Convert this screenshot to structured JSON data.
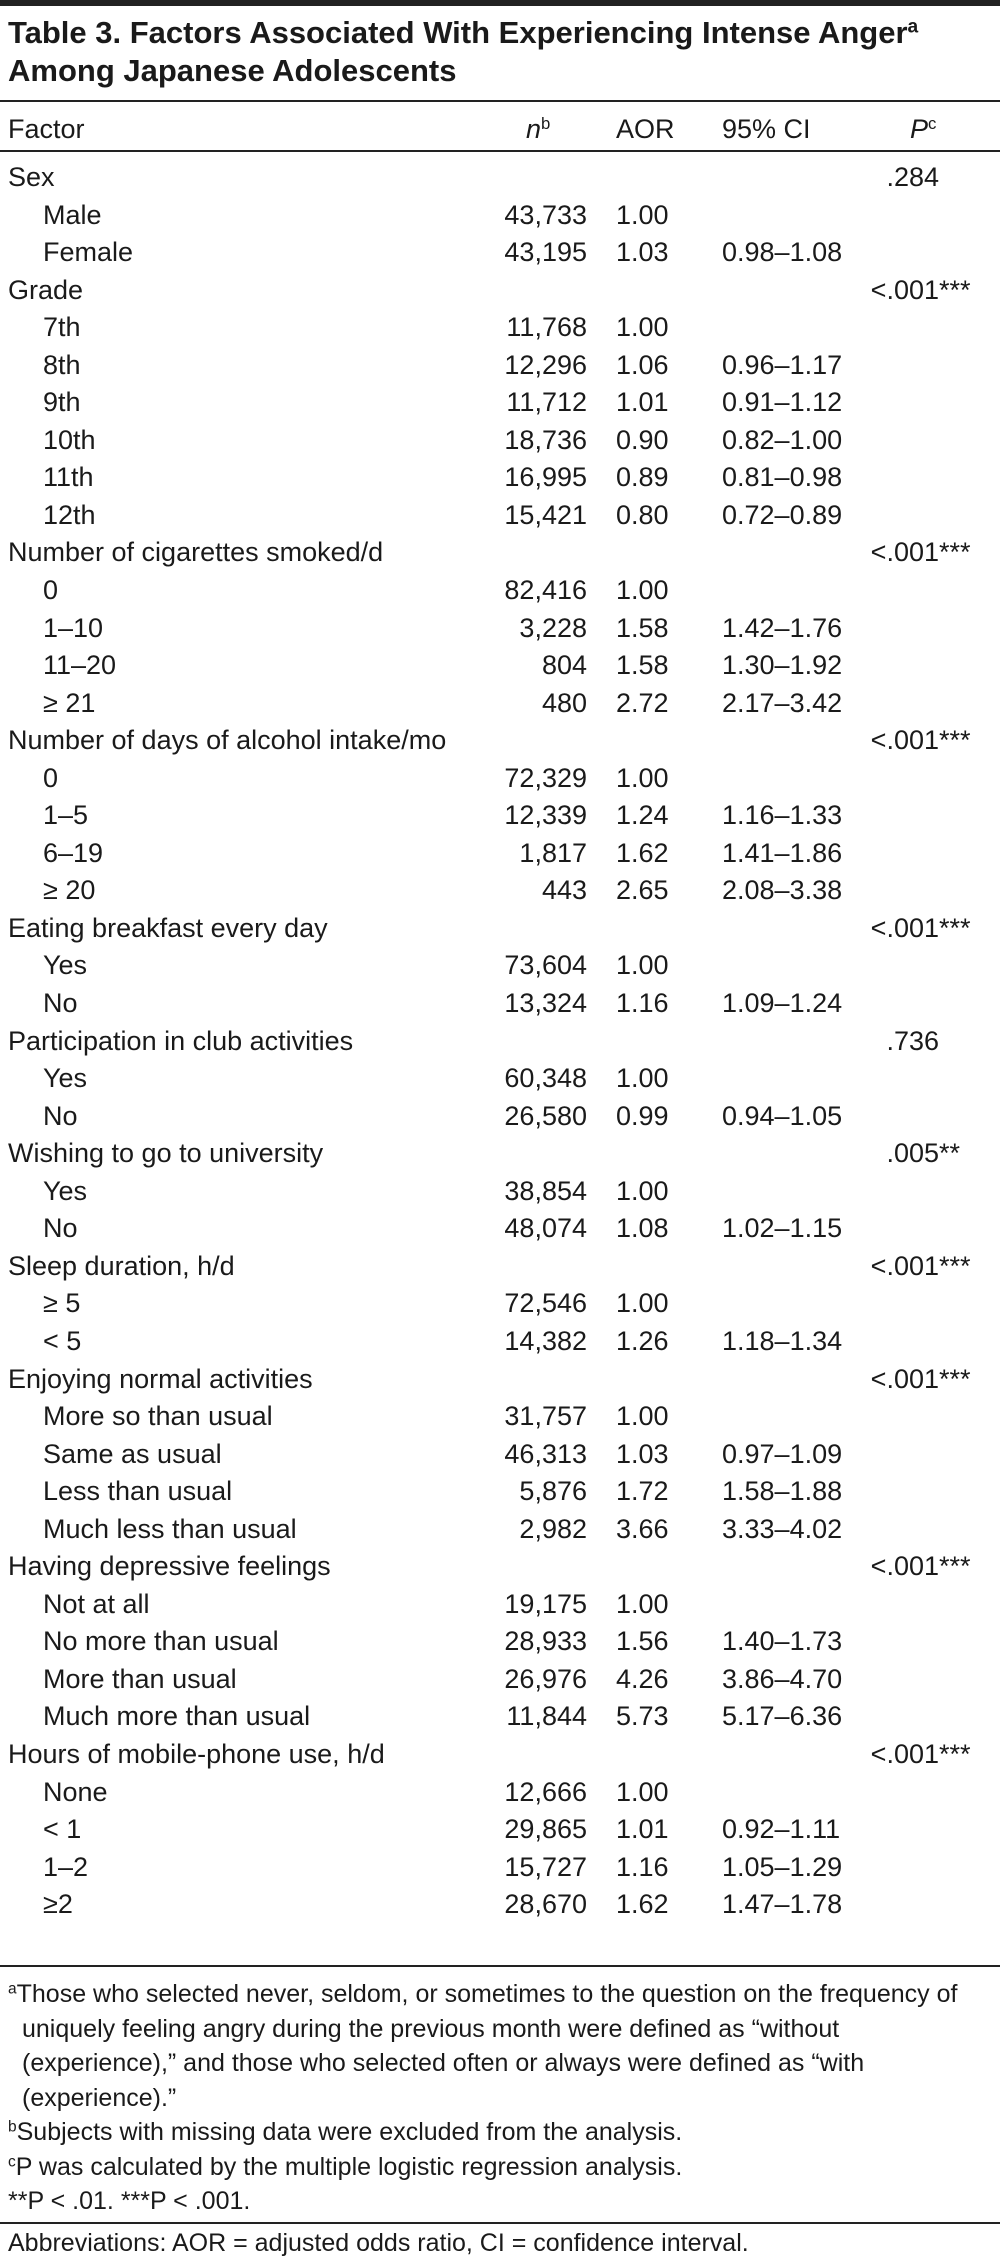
{
  "title": {
    "main": "Table 3. Factors Associated With Experiencing Intense Anger",
    "sup": "a",
    "line2": "Among Japanese Adolescents"
  },
  "header": {
    "factor": "Factor",
    "n": "n",
    "n_sup": "b",
    "aor": "AOR",
    "ci": "95% CI",
    "p": "P",
    "p_sup": "c"
  },
  "groups": [
    {
      "label": "Sex",
      "p": ".284",
      "rows": [
        [
          "Male",
          "43,733",
          "1.00"
        ],
        [
          "Female",
          "43,195",
          "1.03",
          "0.98–1.08"
        ]
      ]
    },
    {
      "label": "Grade",
      "p": "<.001",
      "stars": "***",
      "rows": [
        [
          "7th",
          "11,768",
          "1.00"
        ],
        [
          "8th",
          "12,296",
          "1.06",
          "0.96–1.17"
        ],
        [
          "9th",
          "11,712",
          "1.01",
          "0.91–1.12"
        ],
        [
          "10th",
          "18,736",
          "0.90",
          "0.82–1.00"
        ],
        [
          "11th",
          "16,995",
          "0.89",
          "0.81–0.98"
        ],
        [
          "12th",
          "15,421",
          "0.80",
          "0.72–0.89"
        ]
      ]
    },
    {
      "label": "Number of cigarettes smoked/d",
      "p": "<.001",
      "stars": "***",
      "rows": [
        [
          "0",
          "82,416",
          "1.00"
        ],
        [
          "1–10",
          "3,228",
          "1.58",
          "1.42–1.76"
        ],
        [
          "11–20",
          "804",
          "1.58",
          "1.30–1.92"
        ],
        [
          "≥ 21",
          "480",
          "2.72",
          "2.17–3.42"
        ]
      ]
    },
    {
      "label": "Number of days of alcohol intake/mo",
      "p": "<.001",
      "stars": "***",
      "rows": [
        [
          "0",
          "72,329",
          "1.00"
        ],
        [
          "1–5",
          "12,339",
          "1.24",
          "1.16–1.33"
        ],
        [
          "6–19",
          "1,817",
          "1.62",
          "1.41–1.86"
        ],
        [
          "≥ 20",
          "443",
          "2.65",
          "2.08–3.38"
        ]
      ]
    },
    {
      "label": "Eating breakfast every day",
      "p": "<.001",
      "stars": "***",
      "rows": [
        [
          "Yes",
          "73,604",
          "1.00"
        ],
        [
          "No",
          "13,324",
          "1.16",
          "1.09–1.24"
        ]
      ]
    },
    {
      "label": "Participation in club activities",
      "p": ".736",
      "rows": [
        [
          "Yes",
          "60,348",
          "1.00"
        ],
        [
          "No",
          "26,580",
          "0.99",
          "0.94–1.05"
        ]
      ]
    },
    {
      "label": "Wishing to go to university",
      "p": ".005",
      "stars": "**",
      "rows": [
        [
          "Yes",
          "38,854",
          "1.00"
        ],
        [
          "No",
          "48,074",
          "1.08",
          "1.02–1.15"
        ]
      ]
    },
    {
      "label": "Sleep duration, h/d",
      "p": "<.001",
      "stars": "***",
      "rows": [
        [
          "≥ 5",
          "72,546",
          "1.00"
        ],
        [
          "< 5",
          "14,382",
          "1.26",
          "1.18–1.34"
        ]
      ]
    },
    {
      "label": "Enjoying normal activities",
      "p": "<.001",
      "stars": "***",
      "rows": [
        [
          "More so than usual",
          "31,757",
          "1.00"
        ],
        [
          "Same as usual",
          "46,313",
          "1.03",
          "0.97–1.09"
        ],
        [
          "Less than usual",
          "5,876",
          "1.72",
          "1.58–1.88"
        ],
        [
          "Much less than usual",
          "2,982",
          "3.66",
          "3.33–4.02"
        ]
      ]
    },
    {
      "label": "Having depressive feelings",
      "p": "<.001",
      "stars": "***",
      "rows": [
        [
          "Not at all",
          "19,175",
          "1.00"
        ],
        [
          "No more than usual",
          "28,933",
          "1.56",
          "1.40–1.73"
        ],
        [
          "More than usual",
          "26,976",
          "4.26",
          "3.86–4.70"
        ],
        [
          "Much more than usual",
          "11,844",
          "5.73",
          "5.17–6.36"
        ]
      ]
    },
    {
      "label": "Hours of mobile-phone use, h/d",
      "p": "<.001",
      "stars": "***",
      "rows": [
        [
          "None",
          "12,666",
          "1.00"
        ],
        [
          "< 1",
          "29,865",
          "1.01",
          "0.92–1.11"
        ],
        [
          "1–2",
          "15,727",
          "1.16",
          "1.05–1.29"
        ],
        [
          "≥2",
          "28,670",
          "1.62",
          "1.47–1.78"
        ]
      ]
    }
  ],
  "footnotes": [
    {
      "mark": "a",
      "text": "Those who selected never, seldom, or sometimes to the question on the frequency of uniquely feeling angry during the previous month were defined as “without (experience),” and those who selected often or always were defined as “with (experience).”"
    },
    {
      "mark": "b",
      "text": "Subjects with missing data were excluded from the analysis."
    },
    {
      "mark": "c",
      "text": "P was calculated by the multiple logistic regression analysis."
    }
  ],
  "significance": "**P < .01.  ***P < .001.",
  "abbreviations": "Abbreviations: AOR = adjusted odds ratio, CI = confidence interval."
}
